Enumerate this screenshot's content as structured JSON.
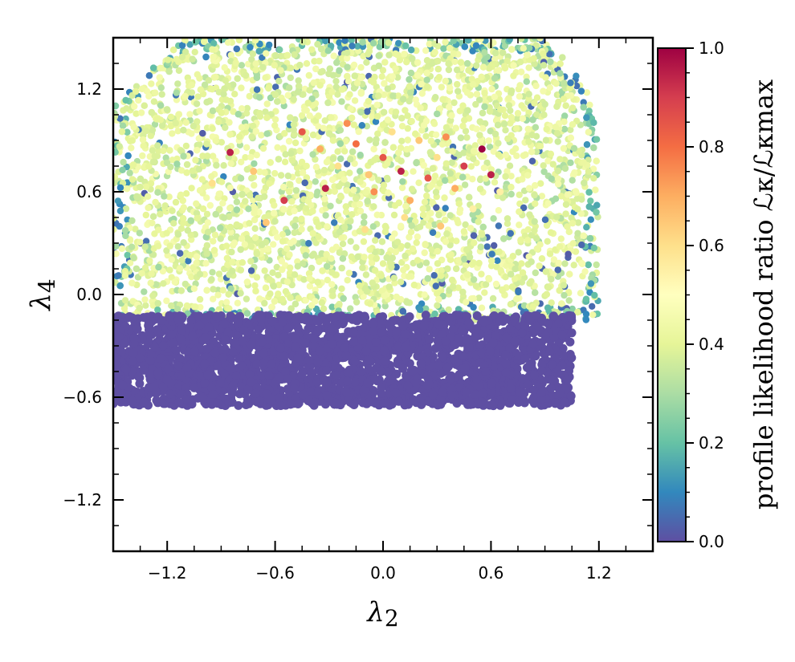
{
  "chart_data": {
    "type": "scatter",
    "title": "",
    "xlabel": "λ2",
    "ylabel": "λ4",
    "xlim": [
      -1.5,
      1.5
    ],
    "ylim": [
      -1.5,
      1.5
    ],
    "x_ticks": [
      -1.2,
      -0.6,
      0.0,
      0.6,
      1.2
    ],
    "y_ticks": [
      -1.2,
      -0.6,
      0.0,
      0.6,
      1.2
    ],
    "x_tick_labels": [
      "−1.2",
      "−0.6",
      "0.0",
      "0.6",
      "1.2"
    ],
    "y_tick_labels": [
      "−1.2",
      "−0.6",
      "0.0",
      "0.6",
      "1.2"
    ],
    "grid": false,
    "colorbar": {
      "label": "profile likelihood ratio ℒκ/ℒκmax",
      "range": [
        0.0,
        1.0
      ],
      "ticks": [
        0.0,
        0.2,
        0.4,
        0.6,
        0.8,
        1.0
      ],
      "tick_labels": [
        "0.0",
        "0.2",
        "0.4",
        "0.6",
        "0.8",
        "1.0"
      ],
      "colormap": "Spectral_r",
      "colors": [
        "#5e4fa2",
        "#3288bd",
        "#66c2a5",
        "#abdda4",
        "#e6f598",
        "#ffffbf",
        "#fee08b",
        "#fdae61",
        "#f46d43",
        "#d53e4f",
        "#9e0142"
      ]
    },
    "regions": [
      {
        "name": "low-likelihood band",
        "x_range": [
          -1.5,
          1.05
        ],
        "y_range": [
          -0.65,
          -0.12
        ],
        "value": 0.0
      },
      {
        "name": "allowed region",
        "x_range": [
          -1.5,
          1.2
        ],
        "y_range": [
          -0.15,
          1.5
        ],
        "value_range": [
          0.3,
          0.45
        ]
      }
    ],
    "highlight_points": [
      {
        "x": -0.85,
        "y": 0.83,
        "value": 0.95
      },
      {
        "x": -0.72,
        "y": 0.72,
        "value": 0.65
      },
      {
        "x": -0.55,
        "y": 0.55,
        "value": 0.9
      },
      {
        "x": -0.45,
        "y": 0.95,
        "value": 0.85
      },
      {
        "x": -0.35,
        "y": 0.85,
        "value": 0.7
      },
      {
        "x": -0.32,
        "y": 0.62,
        "value": 0.95
      },
      {
        "x": -0.25,
        "y": 0.75,
        "value": 0.6
      },
      {
        "x": -0.2,
        "y": 1.0,
        "value": 0.75
      },
      {
        "x": -0.15,
        "y": 0.88,
        "value": 0.8
      },
      {
        "x": -0.08,
        "y": 0.7,
        "value": 0.65
      },
      {
        "x": -0.05,
        "y": 0.6,
        "value": 0.75
      },
      {
        "x": 0.0,
        "y": 0.8,
        "value": 0.85
      },
      {
        "x": 0.05,
        "y": 0.95,
        "value": 0.6
      },
      {
        "x": 0.1,
        "y": 0.72,
        "value": 0.95
      },
      {
        "x": 0.15,
        "y": 0.55,
        "value": 0.7
      },
      {
        "x": 0.2,
        "y": 0.9,
        "value": 0.65
      },
      {
        "x": 0.25,
        "y": 0.68,
        "value": 0.85
      },
      {
        "x": 0.3,
        "y": 0.8,
        "value": 0.6
      },
      {
        "x": 0.35,
        "y": 0.92,
        "value": 0.75
      },
      {
        "x": 0.4,
        "y": 0.62,
        "value": 0.7
      },
      {
        "x": 0.45,
        "y": 0.75,
        "value": 0.9
      },
      {
        "x": 0.55,
        "y": 0.85,
        "value": 1.0
      },
      {
        "x": 0.6,
        "y": 0.7,
        "value": 0.95
      },
      {
        "x": 0.65,
        "y": 0.6,
        "value": 0.55
      },
      {
        "x": -0.65,
        "y": 0.42,
        "value": 0.65
      },
      {
        "x": 0.12,
        "y": 0.45,
        "value": 0.6
      },
      {
        "x": -0.95,
        "y": 0.65,
        "value": 0.6
      },
      {
        "x": 0.5,
        "y": 0.5,
        "value": 0.55
      },
      {
        "x": -0.1,
        "y": 0.38,
        "value": 0.6
      },
      {
        "x": 0.32,
        "y": 0.4,
        "value": 0.65
      }
    ]
  }
}
